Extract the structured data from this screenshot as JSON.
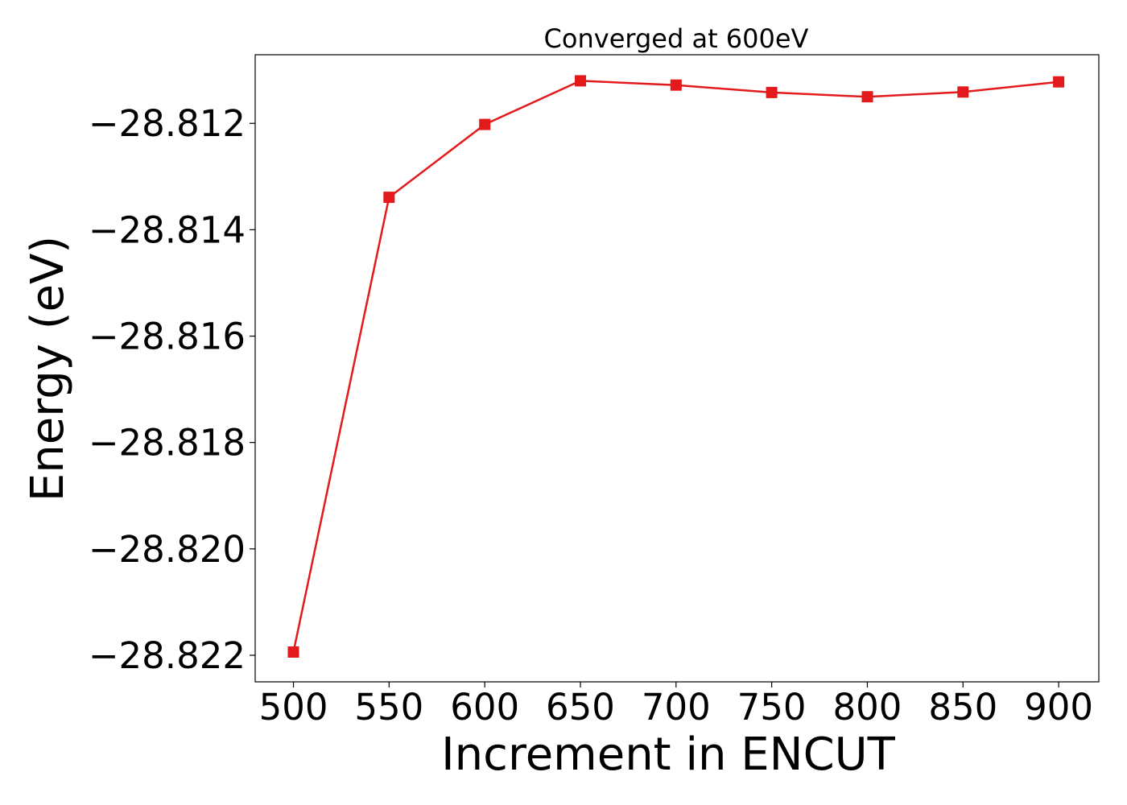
{
  "chart_data": {
    "type": "line",
    "title": "Converged at 600eV",
    "xlabel": "Increment in ENCUT",
    "ylabel": "Energy (eV)",
    "x": [
      500,
      550,
      600,
      650,
      700,
      750,
      800,
      850,
      900
    ],
    "xticks": [
      "500",
      "550",
      "600",
      "650",
      "700",
      "750",
      "800",
      "850",
      "900"
    ],
    "xlim": [
      480,
      921
    ],
    "ylim": [
      -28.8225,
      -28.81071
    ],
    "yticks": [
      -28.812,
      -28.814,
      -28.816,
      -28.818,
      -28.82,
      -28.822
    ],
    "yticklabels": [
      "−28.812",
      "−28.814",
      "−28.816",
      "−28.818",
      "−28.820",
      "−28.822"
    ],
    "series": [
      {
        "values": [
          -28.82194,
          -28.81339,
          -28.81202,
          -28.8112,
          -28.81128,
          -28.81142,
          -28.8115,
          -28.81141,
          -28.81122
        ],
        "color": "#e31a1c",
        "marker": "square"
      }
    ],
    "grid": false,
    "legend": false
  }
}
